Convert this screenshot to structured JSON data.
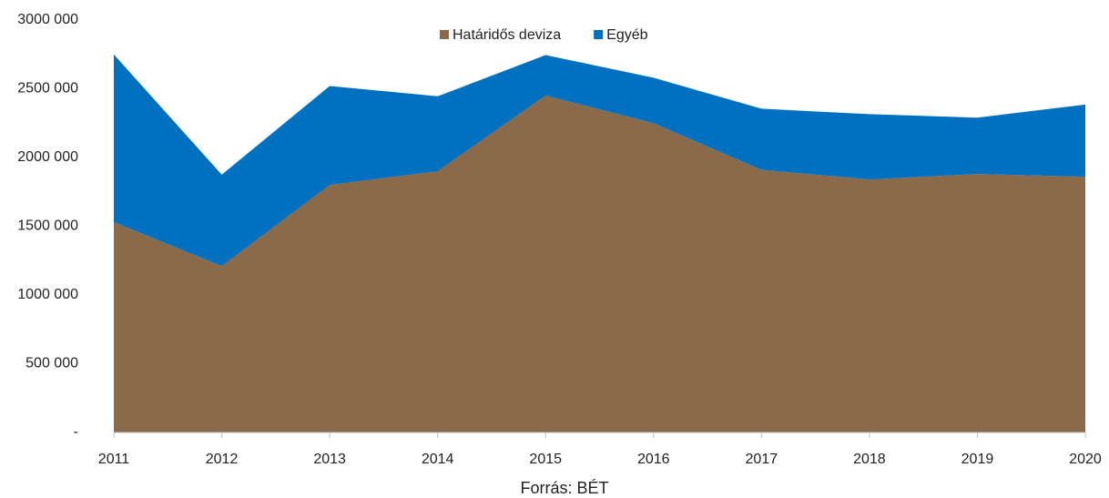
{
  "chart_data": {
    "type": "stacked_area",
    "categories": [
      "2011",
      "2012",
      "2013",
      "2014",
      "2015",
      "2016",
      "2017",
      "2018",
      "2019",
      "2020"
    ],
    "series": [
      {
        "name": "Határidős deviza",
        "color": "#8b6a4a",
        "values": [
          1530000,
          1210000,
          1800000,
          1900000,
          2450000,
          2250000,
          1910000,
          1840000,
          1880000,
          1860000
        ]
      },
      {
        "name": "Egyéb",
        "color": "#0070c0",
        "values": [
          1220000,
          665000,
          720000,
          545000,
          295000,
          330000,
          445000,
          475000,
          410000,
          525000
        ]
      }
    ],
    "ylim": [
      0,
      3000000
    ],
    "yticks": [
      {
        "value": 0,
        "label": "-"
      },
      {
        "value": 500000,
        "label": "500 000"
      },
      {
        "value": 1000000,
        "label": "1000 000"
      },
      {
        "value": 1500000,
        "label": "1500 000"
      },
      {
        "value": 2000000,
        "label": "2000 000"
      },
      {
        "value": 2500000,
        "label": "2500 000"
      },
      {
        "value": 3000000,
        "label": "3000 000"
      }
    ],
    "source": "Forrás: BÉT",
    "legend": "top"
  }
}
